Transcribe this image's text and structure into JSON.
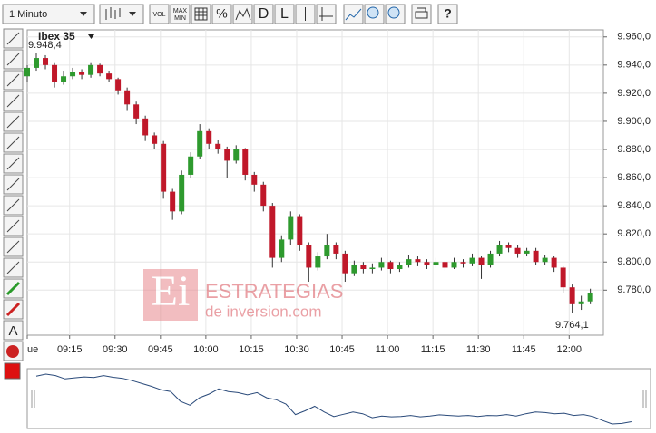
{
  "toolbar": {
    "interval": "1 Minuto",
    "vol": "VOL",
    "max_min": [
      "MAX",
      "MIN"
    ],
    "percent": "%",
    "d": "D",
    "l": "L",
    "text_tool": "A"
  },
  "watermark": {
    "logo": "Ei",
    "line1": "ESTRATEGIAS",
    "line2": "de inversion.com"
  },
  "chart_data": {
    "type": "candlestick",
    "title": "Ibex 35",
    "annotations": [
      "9.948,4",
      "9.764,1"
    ],
    "up_color": "#2e9a2e",
    "down_color": "#c0182a",
    "grid": true,
    "xlim": [
      "09:01",
      "12:11"
    ],
    "xticks": [
      {
        "value": "09:01",
        "label": "ue"
      },
      "09:15",
      "09:30",
      "09:45",
      "10:00",
      "10:15",
      "10:30",
      "10:45",
      "11:00",
      "11:15",
      "11:30",
      "11:45",
      "12:00"
    ],
    "ylim": [
      9748,
      9965
    ],
    "yticks": [
      {
        "value": 9780,
        "label": "9.780,0"
      },
      {
        "value": 9800,
        "label": "9.800,0"
      },
      {
        "value": 9820,
        "label": "9.820,0"
      },
      {
        "value": 9840,
        "label": "9.840,0"
      },
      {
        "value": 9860,
        "label": "9.860,0"
      },
      {
        "value": 9880,
        "label": "9.880,0"
      },
      {
        "value": 9900,
        "label": "9.900,0"
      },
      {
        "value": 9920,
        "label": "9.920,0"
      },
      {
        "value": 9940,
        "label": "9.940,0"
      },
      {
        "value": 9960,
        "label": "9.960,0"
      }
    ],
    "x": [
      "09:01",
      "09:04",
      "09:07",
      "09:10",
      "09:13",
      "09:16",
      "09:19",
      "09:22",
      "09:25",
      "09:28",
      "09:31",
      "09:34",
      "09:37",
      "09:40",
      "09:43",
      "09:46",
      "09:49",
      "09:52",
      "09:55",
      "09:58",
      "10:01",
      "10:04",
      "10:07",
      "10:10",
      "10:13",
      "10:16",
      "10:19",
      "10:22",
      "10:25",
      "10:28",
      "10:31",
      "10:34",
      "10:37",
      "10:40",
      "10:43",
      "10:46",
      "10:49",
      "10:52",
      "10:55",
      "10:58",
      "11:01",
      "11:04",
      "11:07",
      "11:10",
      "11:13",
      "11:16",
      "11:19",
      "11:22",
      "11:25",
      "11:28",
      "11:31",
      "11:34",
      "11:37",
      "11:40",
      "11:43",
      "11:46",
      "11:49",
      "11:52",
      "11:55",
      "11:58",
      "12:01",
      "12:04",
      "12:07"
    ],
    "series": [
      {
        "ohlc": [
          [
            9932,
            9940,
            9928,
            9938
          ],
          [
            9938,
            9948.4,
            9936,
            9945
          ],
          [
            9945,
            9947,
            9937,
            9940
          ],
          [
            9940,
            9942,
            9924,
            9928
          ],
          [
            9928,
            9936,
            9926,
            9932
          ],
          [
            9932,
            9938,
            9930,
            9935
          ],
          [
            9935,
            9937,
            9930,
            9933
          ],
          [
            9933,
            9942,
            9931,
            9940
          ],
          [
            9940,
            9941,
            9932,
            9934
          ],
          [
            9934,
            9936,
            9928,
            9930
          ],
          [
            9930,
            9931,
            9919,
            9922
          ],
          [
            9922,
            9924,
            9908,
            9912
          ],
          [
            9912,
            9914,
            9898,
            9902
          ],
          [
            9902,
            9904,
            9886,
            9890
          ],
          [
            9890,
            9892,
            9880,
            9884
          ],
          [
            9884,
            9886,
            9845,
            9850
          ],
          [
            9850,
            9852,
            9830,
            9836
          ],
          [
            9836,
            9865,
            9834,
            9862
          ],
          [
            9862,
            9878,
            9860,
            9875
          ],
          [
            9875,
            9898,
            9873,
            9893
          ],
          [
            9893,
            9895,
            9880,
            9884
          ],
          [
            9884,
            9887,
            9877,
            9880
          ],
          [
            9880,
            9882,
            9860,
            9872
          ],
          [
            9872,
            9883,
            9870,
            9880
          ],
          [
            9880,
            9881,
            9858,
            9862
          ],
          [
            9862,
            9864,
            9850,
            9855
          ],
          [
            9855,
            9857,
            9836,
            9840
          ],
          [
            9840,
            9842,
            9796,
            9803
          ],
          [
            9803,
            9819,
            9800,
            9816
          ],
          [
            9816,
            9836,
            9812,
            9832
          ],
          [
            9832,
            9834,
            9808,
            9812
          ],
          [
            9812,
            9814,
            9786,
            9796
          ],
          [
            9796,
            9807,
            9794,
            9804
          ],
          [
            9804,
            9820,
            9802,
            9812
          ],
          [
            9812,
            9814,
            9802,
            9806
          ],
          [
            9806,
            9808,
            9786,
            9792
          ],
          [
            9792,
            9801,
            9790,
            9798
          ],
          [
            9798,
            9800,
            9792,
            9795
          ],
          [
            9795,
            9799,
            9792,
            9796
          ],
          [
            9796,
            9803,
            9794,
            9800
          ],
          [
            9800,
            9801,
            9792,
            9795
          ],
          [
            9795,
            9800,
            9793,
            9798
          ],
          [
            9798,
            9805,
            9796,
            9802
          ],
          [
            9802,
            9804,
            9797,
            9800
          ],
          [
            9800,
            9802,
            9795,
            9798
          ],
          [
            9798,
            9803,
            9796,
            9800
          ],
          [
            9800,
            9801,
            9794,
            9796
          ],
          [
            9796,
            9803,
            9795,
            9800
          ],
          [
            9800,
            9802,
            9796,
            9799
          ],
          [
            9799,
            9806,
            9797,
            9803
          ],
          [
            9803,
            9804,
            9788,
            9798
          ],
          [
            9798,
            9808,
            9796,
            9806
          ],
          [
            9806,
            9815,
            9804,
            9812
          ],
          [
            9812,
            9814,
            9807,
            9810
          ],
          [
            9810,
            9812,
            9803,
            9806
          ],
          [
            9806,
            9810,
            9804,
            9808
          ],
          [
            9808,
            9810,
            9798,
            9800
          ],
          [
            9800,
            9805,
            9798,
            9803
          ],
          [
            9803,
            9804,
            9793,
            9796
          ],
          [
            9796,
            9797,
            9778,
            9782
          ],
          [
            9782,
            9784,
            9764.1,
            9770
          ],
          [
            9770,
            9776,
            9766,
            9772
          ],
          [
            9772,
            9781,
            9770,
            9778
          ]
        ]
      }
    ]
  }
}
